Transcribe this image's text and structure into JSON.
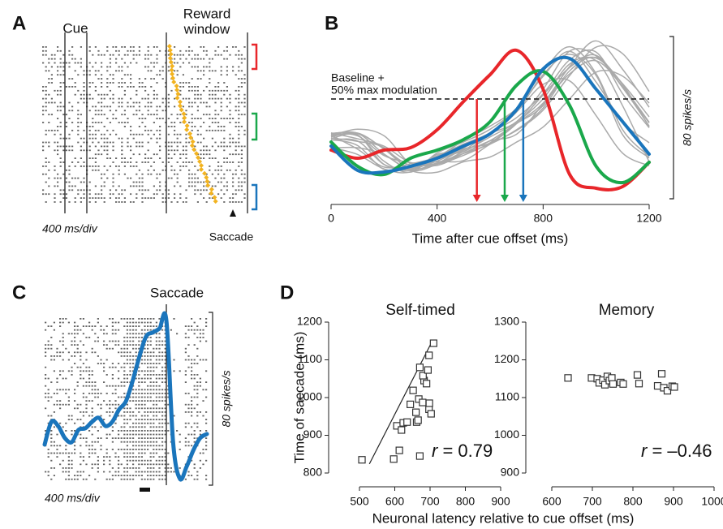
{
  "chart_data": [
    {
      "panel": "A",
      "type": "raster",
      "cue_label": "Cue",
      "window_label": [
        "Reward",
        "window"
      ],
      "scale_label": "400 ms/div",
      "event_label": "Saccade",
      "bracket_colors": [
        "#e8262a",
        "#1aa84b",
        "#1a75bc"
      ],
      "marker_color": "#f2b320"
    },
    {
      "panel": "B",
      "type": "line",
      "x": [
        0,
        100,
        200,
        300,
        400,
        500,
        600,
        700,
        800,
        900,
        1000,
        1100,
        1200
      ],
      "series": [
        {
          "color": "#e8262a",
          "values": [
            26,
            22,
            26,
            27.2,
            36,
            50,
            63.2,
            75.2,
            56,
            14,
            7.2,
            8,
            20
          ],
          "latency": 550
        },
        {
          "color": "#1aa84b",
          "values": [
            30,
            18,
            14,
            22,
            26,
            31.2,
            40,
            58,
            64.8,
            48,
            18,
            10,
            20
          ],
          "latency": 655
        },
        {
          "color": "#1a75bc",
          "values": [
            28,
            16,
            15.2,
            18,
            22,
            28,
            34,
            46,
            66,
            71.2,
            56,
            40,
            24
          ],
          "latency": 725
        }
      ],
      "other_color": "#aaaaaa",
      "xlim": [
        0,
        1200
      ],
      "xticks": [
        0,
        400,
        800,
        1200
      ],
      "ylim": [
        0,
        84
      ],
      "xlabel": "Time after cue offset (ms)",
      "threshold": 51.2,
      "threshold_label": [
        "Baseline +",
        "50% max modulation"
      ],
      "scale_bar": {
        "value": 80,
        "label": "80 spikes/s"
      }
    },
    {
      "panel": "C",
      "type": "line",
      "title": "Saccade",
      "series": [
        {
          "color": "#1a75bc",
          "values": [
            18.8,
            29.3,
            27.4,
            21.8,
            19.9,
            25.6,
            26.3,
            29.3,
            31.2,
            27.4,
            29.3,
            35.0,
            38.7,
            48.1,
            59.4,
            68.8,
            70.7,
            72.6,
            76.3,
            19.9,
            3.0,
            8.6,
            16.2,
            21.8,
            23.7
          ]
        }
      ],
      "ylim": [
        0,
        80
      ],
      "scale_bar": {
        "value": 80,
        "label": "80 spikes/s"
      },
      "scale_label": "400 ms/div"
    },
    {
      "panel": "D",
      "type": "scatter",
      "title": "Self-timed",
      "x": [
        507,
        597,
        613,
        606,
        624,
        619,
        635,
        652,
        668,
        660,
        679,
        683,
        662,
        644,
        697,
        680,
        694,
        698,
        690,
        666,
        671,
        697,
        710,
        703,
        671
      ],
      "values": [
        835,
        837,
        860,
        925,
        933,
        914,
        935,
        1019,
        996,
        961,
        987,
        1045,
        935,
        982,
        969,
        1058,
        1073,
        985,
        1037,
        940,
        1080,
        1112,
        1144,
        957,
        845
      ],
      "xlim": [
        500,
        900
      ],
      "xticks": [
        500,
        600,
        700,
        800,
        900
      ],
      "ylim": [
        800,
        1200
      ],
      "yticks": [
        800,
        900,
        1000,
        1100,
        1200
      ],
      "ylabel": "Time of saccade (ms)",
      "xlabel": "Neuronal latency relative to cue offset (ms)",
      "fit": {
        "x": [
          528,
          707
        ],
        "values": [
          824,
          1151
        ]
      },
      "r_symbol": "r",
      "r_text": " = 0.79"
    },
    {
      "type": "scatter",
      "title": "Memory",
      "x": [
        640,
        698,
        712,
        717,
        726,
        731,
        737,
        742,
        748,
        751,
        770,
        776,
        811,
        815,
        861,
        871,
        876,
        885,
        897,
        902
      ],
      "values": [
        1152,
        1152,
        1150,
        1139,
        1146,
        1134,
        1156,
        1145,
        1152,
        1136,
        1140,
        1136,
        1160,
        1137,
        1131,
        1163,
        1126,
        1118,
        1130,
        1128
      ],
      "xlim": [
        600,
        1000
      ],
      "xticks": [
        600,
        700,
        800,
        900,
        1000
      ],
      "ylim": [
        900,
        1300
      ],
      "yticks": [
        900,
        1000,
        1100,
        1200,
        1300
      ],
      "r_symbol": "r",
      "r_text": " = –0.46"
    }
  ]
}
